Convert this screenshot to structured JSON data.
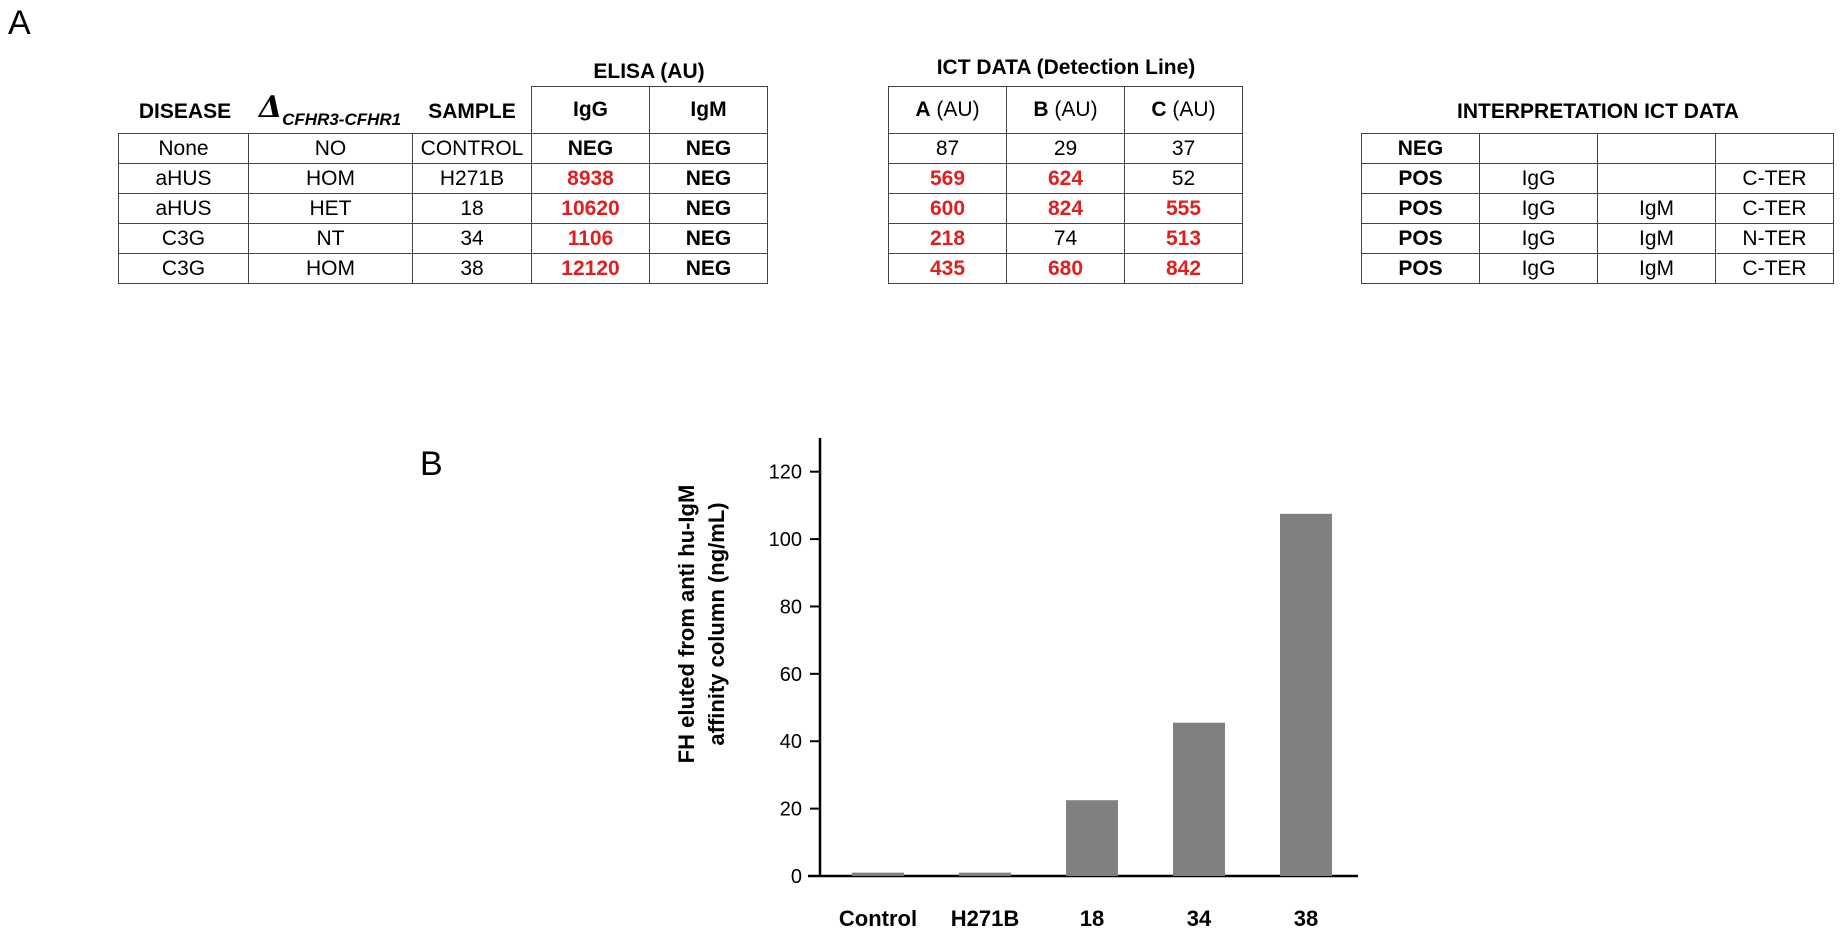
{
  "panel_a_label": "A",
  "panel_b_label": "B",
  "elisa": {
    "group_header": "ELISA (AU)",
    "col_disease": "DISEASE",
    "col_delta_symbol": "Δ",
    "col_delta_sub": "CFHR3-CFHR1",
    "col_sample": "SAMPLE",
    "col_igg": "IgG",
    "col_igm": "IgM",
    "rows": [
      {
        "disease": "None",
        "delta": "NO",
        "sample": "CONTROL",
        "igg": "NEG",
        "igm": "NEG"
      },
      {
        "disease": "aHUS",
        "delta": "HOM",
        "sample": "H271B",
        "igg": "8938",
        "igm": "NEG"
      },
      {
        "disease": "aHUS",
        "delta": "HET",
        "sample": "18",
        "igg": "10620",
        "igm": "NEG"
      },
      {
        "disease": "C3G",
        "delta": "NT",
        "sample": "34",
        "igg": "1106",
        "igm": "NEG"
      },
      {
        "disease": "C3G",
        "delta": "HOM",
        "sample": "38",
        "igg": "12120",
        "igm": "NEG"
      }
    ]
  },
  "ict": {
    "title": "ICT DATA (Detection Line)",
    "col_a": "A",
    "col_b": "B",
    "col_c": "C",
    "unit": "(AU)",
    "rows": [
      {
        "a": "87",
        "b": "29",
        "c": "37"
      },
      {
        "a": "569",
        "b": "624",
        "c": "52"
      },
      {
        "a": "600",
        "b": "824",
        "c": "555"
      },
      {
        "a": "218",
        "b": "74",
        "c": "513"
      },
      {
        "a": "435",
        "b": "680",
        "c": "842"
      }
    ]
  },
  "interpretation": {
    "title": "INTERPRETATION ICT DATA",
    "rows": [
      {
        "result": "NEG",
        "igg": "",
        "igm": "",
        "ter": ""
      },
      {
        "result": "POS",
        "igg": "IgG",
        "igm": "",
        "ter": "C-TER"
      },
      {
        "result": "POS",
        "igg": "IgG",
        "igm": "IgM",
        "ter": "C-TER"
      },
      {
        "result": "POS",
        "igg": "IgG",
        "igm": "IgM",
        "ter": "N-TER"
      },
      {
        "result": "POS",
        "igg": "IgG",
        "igm": "IgM",
        "ter": "C-TER"
      }
    ]
  },
  "chart_data": {
    "type": "bar",
    "title": "",
    "categories": [
      "Control",
      "H271B",
      "18",
      "34",
      "38"
    ],
    "values": [
      1,
      1,
      22.5,
      45.5,
      107.5
    ],
    "ylabel_line1": "FH eluted from anti hu-IgM",
    "ylabel_line2": "affinity column (ng/mL)",
    "xlabel": "",
    "ylim": [
      0,
      130
    ],
    "yticks": [
      0,
      20,
      40,
      60,
      80,
      100,
      120
    ],
    "bar_color": "#808080"
  }
}
